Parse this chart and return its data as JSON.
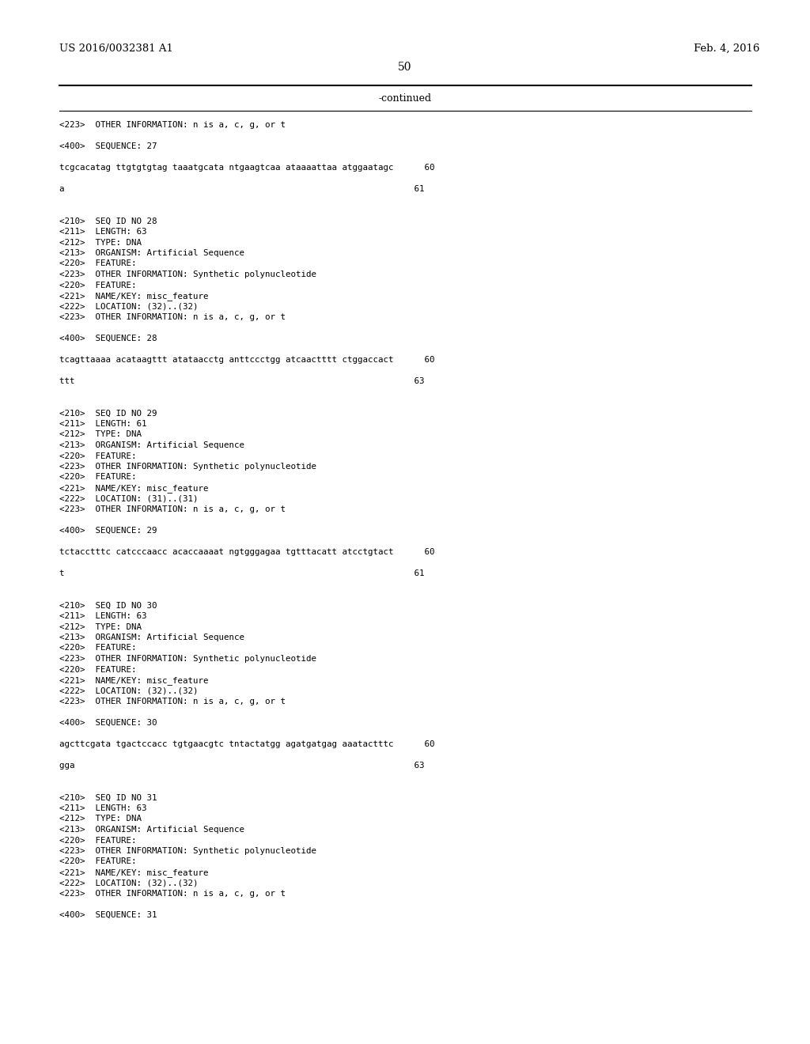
{
  "header_left": "US 2016/0032381 A1",
  "header_right": "Feb. 4, 2016",
  "page_number": "50",
  "continued_text": "-continued",
  "background_color": "#ffffff",
  "text_color": "#000000",
  "header_fontsize": 9.5,
  "page_num_fontsize": 10,
  "continued_fontsize": 9,
  "mono_font_size": 7.8,
  "lines": [
    {
      "text": "<223>  OTHER INFORMATION: n is a, c, g, or t"
    },
    {
      "text": ""
    },
    {
      "text": "<400>  SEQUENCE: 27"
    },
    {
      "text": ""
    },
    {
      "text": "tcgcacatag ttgtgtgtag taaatgcata ntgaagtcaa ataaaattaa atggaatagc      60"
    },
    {
      "text": ""
    },
    {
      "text": "a                                                                    61"
    },
    {
      "text": ""
    },
    {
      "text": ""
    },
    {
      "text": "<210>  SEQ ID NO 28"
    },
    {
      "text": "<211>  LENGTH: 63"
    },
    {
      "text": "<212>  TYPE: DNA"
    },
    {
      "text": "<213>  ORGANISM: Artificial Sequence"
    },
    {
      "text": "<220>  FEATURE:"
    },
    {
      "text": "<223>  OTHER INFORMATION: Synthetic polynucleotide"
    },
    {
      "text": "<220>  FEATURE:"
    },
    {
      "text": "<221>  NAME/KEY: misc_feature"
    },
    {
      "text": "<222>  LOCATION: (32)..(32)"
    },
    {
      "text": "<223>  OTHER INFORMATION: n is a, c, g, or t"
    },
    {
      "text": ""
    },
    {
      "text": "<400>  SEQUENCE: 28"
    },
    {
      "text": ""
    },
    {
      "text": "tcagttaaaa acataagttt atataacctg anttccctgg atcaactttt ctggaccact      60"
    },
    {
      "text": ""
    },
    {
      "text": "ttt                                                                  63"
    },
    {
      "text": ""
    },
    {
      "text": ""
    },
    {
      "text": "<210>  SEQ ID NO 29"
    },
    {
      "text": "<211>  LENGTH: 61"
    },
    {
      "text": "<212>  TYPE: DNA"
    },
    {
      "text": "<213>  ORGANISM: Artificial Sequence"
    },
    {
      "text": "<220>  FEATURE:"
    },
    {
      "text": "<223>  OTHER INFORMATION: Synthetic polynucleotide"
    },
    {
      "text": "<220>  FEATURE:"
    },
    {
      "text": "<221>  NAME/KEY: misc_feature"
    },
    {
      "text": "<222>  LOCATION: (31)..(31)"
    },
    {
      "text": "<223>  OTHER INFORMATION: n is a, c, g, or t"
    },
    {
      "text": ""
    },
    {
      "text": "<400>  SEQUENCE: 29"
    },
    {
      "text": ""
    },
    {
      "text": "tctacctttc catcccaacc acaccaaaat ngtgggagaa tgtttacatt atcctgtact      60"
    },
    {
      "text": ""
    },
    {
      "text": "t                                                                    61"
    },
    {
      "text": ""
    },
    {
      "text": ""
    },
    {
      "text": "<210>  SEQ ID NO 30"
    },
    {
      "text": "<211>  LENGTH: 63"
    },
    {
      "text": "<212>  TYPE: DNA"
    },
    {
      "text": "<213>  ORGANISM: Artificial Sequence"
    },
    {
      "text": "<220>  FEATURE:"
    },
    {
      "text": "<223>  OTHER INFORMATION: Synthetic polynucleotide"
    },
    {
      "text": "<220>  FEATURE:"
    },
    {
      "text": "<221>  NAME/KEY: misc_feature"
    },
    {
      "text": "<222>  LOCATION: (32)..(32)"
    },
    {
      "text": "<223>  OTHER INFORMATION: n is a, c, g, or t"
    },
    {
      "text": ""
    },
    {
      "text": "<400>  SEQUENCE: 30"
    },
    {
      "text": ""
    },
    {
      "text": "agcttcgata tgactccacc tgtgaacgtc tntactatgg agatgatgag aaatactttc      60"
    },
    {
      "text": ""
    },
    {
      "text": "gga                                                                  63"
    },
    {
      "text": ""
    },
    {
      "text": ""
    },
    {
      "text": "<210>  SEQ ID NO 31"
    },
    {
      "text": "<211>  LENGTH: 63"
    },
    {
      "text": "<212>  TYPE: DNA"
    },
    {
      "text": "<213>  ORGANISM: Artificial Sequence"
    },
    {
      "text": "<220>  FEATURE:"
    },
    {
      "text": "<223>  OTHER INFORMATION: Synthetic polynucleotide"
    },
    {
      "text": "<220>  FEATURE:"
    },
    {
      "text": "<221>  NAME/KEY: misc_feature"
    },
    {
      "text": "<222>  LOCATION: (32)..(32)"
    },
    {
      "text": "<223>  OTHER INFORMATION: n is a, c, g, or t"
    },
    {
      "text": ""
    },
    {
      "text": "<400>  SEQUENCE: 31"
    }
  ]
}
